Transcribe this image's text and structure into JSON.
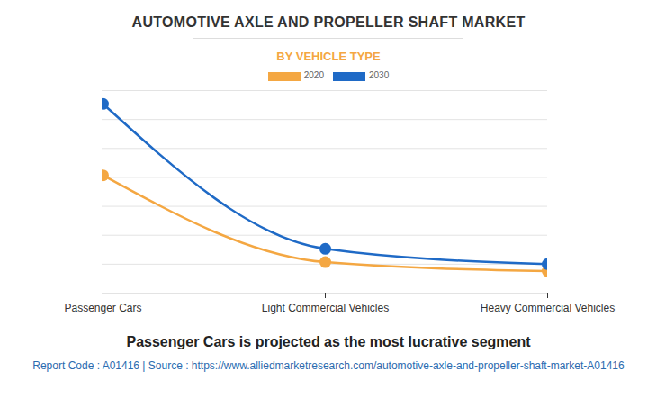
{
  "chart_data": {
    "type": "line",
    "title": "AUTOMOTIVE AXLE AND PROPELLER SHAFT MARKET",
    "subtitle": "BY VEHICLE TYPE",
    "caption": "Passenger Cars is projected as the most lucrative segment",
    "source_note": "Report Code : A01416  |  Source : https://www.alliedmarketresearch.com/automotive-axle-and-propeller-shaft-market-A01416",
    "categories": [
      "Passenger Cars",
      "Light Commercial Vehicles",
      "Heavy Commercial Vehicles"
    ],
    "series": [
      {
        "name": "2020",
        "color": "#f4a742",
        "values": [
          4.07,
          1.07,
          0.76
        ]
      },
      {
        "name": "2030",
        "color": "#1f6ac6",
        "values": [
          6.54,
          1.53,
          1.0
        ]
      }
    ],
    "ylim": [
      0,
      7
    ],
    "yticks": [
      0,
      1,
      2,
      3,
      4,
      5,
      6,
      7
    ],
    "grid": true,
    "tick_labels": "x",
    "legend": "top",
    "marker": "circle"
  }
}
